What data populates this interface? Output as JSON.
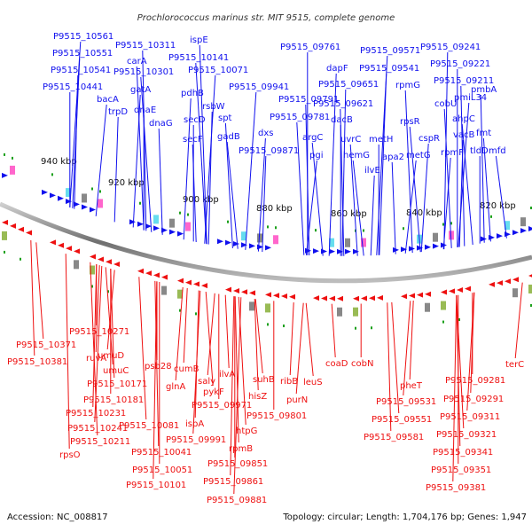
{
  "title": "Prochlorococcus marinus str. MIT 9515, complete genome",
  "footer": {
    "accession": "Accession: NC_008817",
    "topology": "Topology: circular; Length: 1,704,176 bp; Genes: 1,947"
  },
  "ticks": [
    "940 kbp",
    "920 kbp",
    "900 kbp",
    "880 kbp",
    "860 kbp",
    "840 kbp",
    "820 kbp"
  ],
  "colors": {
    "forward": "#1010ee",
    "reverse": "#ee1010",
    "arc": "#888888",
    "ticks": "#1aa01a"
  },
  "top_labels": [
    "P9515_10561",
    "P9515_10551",
    "P9515_10541",
    "P9515_10441",
    "P9515_10311",
    "carA",
    "P9515_10301",
    "bacA",
    "gatA",
    "trpD",
    "dnaE",
    "dnaG",
    "ispE",
    "P9515_10141",
    "P9515_10071",
    "pdhB",
    "rsbW",
    "secD",
    "secF",
    "spt",
    "gadB",
    "P9515_09941",
    "dxs",
    "P9515_09871",
    "P9515_09761",
    "P9515_09791",
    "P9515_09781",
    "argC",
    "pgi",
    "dapF",
    "P9515_09651",
    "dacB",
    "P9515_09621",
    "uvrC",
    "hemG",
    "P9515_09571",
    "P9515_09541",
    "ilvE",
    "metH",
    "apa2",
    "rpmG",
    "rpsR",
    "metG",
    "cspR",
    "P9515_09241",
    "P9515_09221",
    "P9515_09211",
    "cobU",
    "ahpC",
    "pmiL34",
    "rpmF",
    "vacB",
    "tldD",
    "pmbA",
    "fmt",
    "mfd"
  ],
  "bottom_labels": [
    "P9515_10371",
    "P9515_10381",
    "P9515_10271",
    "ruvA",
    "umuD",
    "umuC",
    "P9515_10171",
    "P9515_10181",
    "P9515_10231",
    "P9515_10241",
    "P9515_10211",
    "rpsO",
    "psb28",
    "cumB",
    "glnA",
    "P9515_10081",
    "P9515_10041",
    "P9515_10051",
    "P9515_10101",
    "saly",
    "pykF",
    "ilvA",
    "P9515_09971",
    "ispA",
    "P9515_09991",
    "htpG",
    "rpmB",
    "P9515_09851",
    "P9515_09861",
    "P9515_09881",
    "suhB",
    "hisZ",
    "P9515_09801",
    "ribB",
    "purN",
    "leuS",
    "coaD",
    "cobN",
    "pheT",
    "P9515_09531",
    "P9515_09551",
    "P9515_09581",
    "P9515_09281",
    "P9515_09291",
    "P9515_09311",
    "P9515_09321",
    "P9515_09341",
    "P9515_09351",
    "P9515_09381",
    "terC"
  ]
}
